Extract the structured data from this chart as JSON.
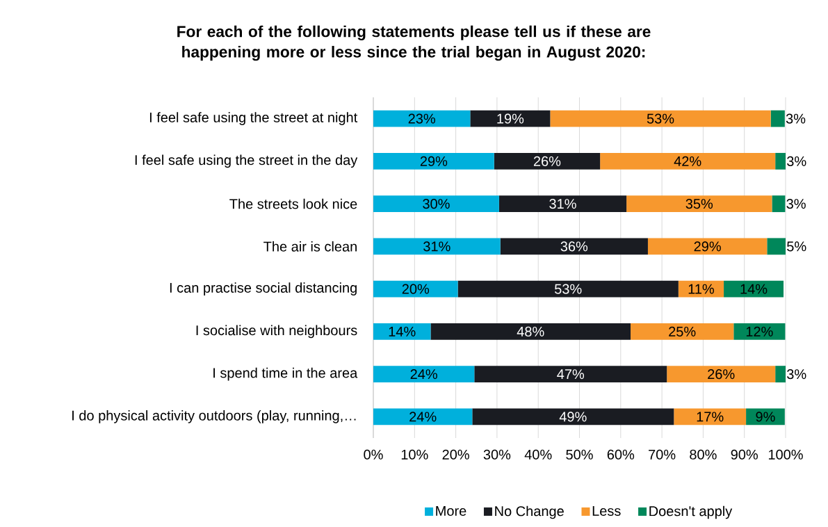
{
  "chart_data": {
    "type": "bar",
    "orientation": "horizontal",
    "stacked": true,
    "title": "For each of the following statements please tell us if these are happening more or less since the trial began in August 2020:",
    "categories": [
      "I feel safe using the street at night",
      "I feel safe using the street in the day",
      "The streets look nice",
      "The air is clean",
      "I can practise social distancing",
      "I socialise with neighbours",
      "I spend time in the area",
      "I do physical activity outdoors (play, running,…"
    ],
    "series": [
      {
        "name": "More",
        "color": "#00b0dc",
        "values": [
          23.5,
          29.3,
          30.5,
          30.8,
          20.5,
          13.9,
          24.5,
          24.0
        ],
        "value_labels": [
          "23%",
          "29%",
          "30%",
          "31%",
          "20%",
          "14%",
          "24%",
          "24%"
        ]
      },
      {
        "name": "No Change",
        "color": "#1a1c22",
        "values": [
          19.4,
          25.7,
          30.9,
          35.8,
          53.5,
          48.5,
          46.7,
          48.9
        ],
        "value_labels": [
          "19%",
          "26%",
          "31%",
          "36%",
          "53%",
          "48%",
          "47%",
          "49%"
        ]
      },
      {
        "name": "Less",
        "color": "#f7982e",
        "values": [
          53.5,
          42.5,
          35.3,
          28.9,
          11.0,
          25.0,
          26.3,
          17.5
        ],
        "value_labels": [
          "53%",
          "42%",
          "35%",
          "29%",
          "11%",
          "25%",
          "26%",
          "17%"
        ]
      },
      {
        "name": "Doesn't apply",
        "color": "#00875a",
        "values": [
          3.4,
          2.5,
          3.2,
          4.5,
          14.5,
          12.5,
          2.5,
          9.4
        ],
        "value_labels": [
          "3%",
          "3%",
          "3%",
          "5%",
          "14%",
          "12%",
          "3%",
          "9%"
        ]
      }
    ],
    "xlim": [
      0,
      100
    ],
    "xticks": [
      {
        "value": 0,
        "label": "0%"
      },
      {
        "value": 10,
        "label": "10%"
      },
      {
        "value": 20,
        "label": "20%"
      },
      {
        "value": 30,
        "label": "30%"
      },
      {
        "value": 40,
        "label": "40%"
      },
      {
        "value": 50,
        "label": "50%"
      },
      {
        "value": 60,
        "label": "60%"
      },
      {
        "value": 70,
        "label": "70%"
      },
      {
        "value": 80,
        "label": "80%"
      },
      {
        "value": 90,
        "label": "90%"
      },
      {
        "value": 100,
        "label": "100%"
      }
    ],
    "grid": "x",
    "legend": "bottom"
  }
}
